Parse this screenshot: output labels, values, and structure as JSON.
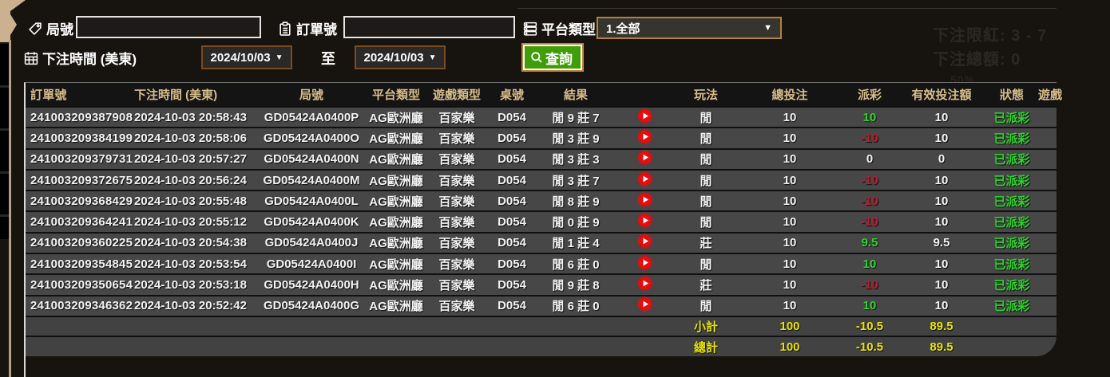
{
  "filters": {
    "round_label": "局號",
    "round_value": "",
    "order_label": "訂單號",
    "order_value": "",
    "platform_label": "平台類型",
    "platform_selected": "1.全部",
    "bet_time_label": "下注時間 (美東)",
    "date_from": "2024/10/03",
    "date_to": "2024/10/03",
    "to_label": "至",
    "query_label": "查詢"
  },
  "faint_overlay": {
    "line1": "下注限紅: 3 - 7",
    "line2": "下注總額: 0",
    "line3": "50%"
  },
  "table": {
    "headers": [
      "訂單號",
      "下注時間 (美東)",
      "局號",
      "平台類型",
      "遊戲類型",
      "桌號",
      "結果",
      "",
      "玩法",
      "總投注",
      "派彩",
      "有效投注額",
      "狀態",
      "遊戲"
    ],
    "rows": [
      {
        "order": "241003209387908",
        "time": "2024-10-03 20:58:43",
        "round": "GD05424A0400P",
        "platform": "AG歐洲廳",
        "game_type": "百家樂",
        "table_no": "D054",
        "result": "閒 9 莊 7",
        "play": "閒",
        "total_bet": "10",
        "payout": "10",
        "payout_class": "win",
        "valid_bet": "10",
        "status": "已派彩"
      },
      {
        "order": "241003209384199",
        "time": "2024-10-03 20:58:06",
        "round": "GD05424A0400O",
        "platform": "AG歐洲廳",
        "game_type": "百家樂",
        "table_no": "D054",
        "result": "閒 3 莊 9",
        "play": "閒",
        "total_bet": "10",
        "payout": "-10",
        "payout_class": "lose",
        "valid_bet": "10",
        "status": "已派彩"
      },
      {
        "order": "241003209379731",
        "time": "2024-10-03 20:57:27",
        "round": "GD05424A0400N",
        "platform": "AG歐洲廳",
        "game_type": "百家樂",
        "table_no": "D054",
        "result": "閒 3 莊 3",
        "play": "閒",
        "total_bet": "10",
        "payout": "0",
        "payout_class": "tie",
        "valid_bet": "0",
        "status": "已派彩"
      },
      {
        "order": "241003209372675",
        "time": "2024-10-03 20:56:24",
        "round": "GD05424A0400M",
        "platform": "AG歐洲廳",
        "game_type": "百家樂",
        "table_no": "D054",
        "result": "閒 3 莊 7",
        "play": "閒",
        "total_bet": "10",
        "payout": "-10",
        "payout_class": "lose",
        "valid_bet": "10",
        "status": "已派彩"
      },
      {
        "order": "241003209368429",
        "time": "2024-10-03 20:55:48",
        "round": "GD05424A0400L",
        "platform": "AG歐洲廳",
        "game_type": "百家樂",
        "table_no": "D054",
        "result": "閒 8 莊 9",
        "play": "閒",
        "total_bet": "10",
        "payout": "-10",
        "payout_class": "lose",
        "valid_bet": "10",
        "status": "已派彩"
      },
      {
        "order": "241003209364241",
        "time": "2024-10-03 20:55:12",
        "round": "GD05424A0400K",
        "platform": "AG歐洲廳",
        "game_type": "百家樂",
        "table_no": "D054",
        "result": "閒 0 莊 9",
        "play": "閒",
        "total_bet": "10",
        "payout": "-10",
        "payout_class": "lose",
        "valid_bet": "10",
        "status": "已派彩"
      },
      {
        "order": "241003209360225",
        "time": "2024-10-03 20:54:38",
        "round": "GD05424A0400J",
        "platform": "AG歐洲廳",
        "game_type": "百家樂",
        "table_no": "D054",
        "result": "閒 1 莊 4",
        "play": "莊",
        "total_bet": "10",
        "payout": "9.5",
        "payout_class": "win",
        "valid_bet": "9.5",
        "status": "已派彩"
      },
      {
        "order": "241003209354845",
        "time": "2024-10-03 20:53:54",
        "round": "GD05424A0400I",
        "platform": "AG歐洲廳",
        "game_type": "百家樂",
        "table_no": "D054",
        "result": "閒 6 莊 0",
        "play": "閒",
        "total_bet": "10",
        "payout": "10",
        "payout_class": "win",
        "valid_bet": "10",
        "status": "已派彩"
      },
      {
        "order": "241003209350654",
        "time": "2024-10-03 20:53:18",
        "round": "GD05424A0400H",
        "platform": "AG歐洲廳",
        "game_type": "百家樂",
        "table_no": "D054",
        "result": "閒 9 莊 8",
        "play": "莊",
        "total_bet": "10",
        "payout": "-10",
        "payout_class": "lose",
        "valid_bet": "10",
        "status": "已派彩"
      },
      {
        "order": "241003209346362",
        "time": "2024-10-03 20:52:42",
        "round": "GD05424A0400G",
        "platform": "AG歐洲廳",
        "game_type": "百家樂",
        "table_no": "D054",
        "result": "閒 6 莊 0",
        "play": "閒",
        "total_bet": "10",
        "payout": "10",
        "payout_class": "win",
        "valid_bet": "10",
        "status": "已派彩"
      }
    ],
    "subtotal": {
      "label": "小計",
      "total_bet": "100",
      "payout": "-10.5",
      "valid_bet": "89.5"
    },
    "total": {
      "label": "總計",
      "total_bet": "100",
      "payout": "-10.5",
      "valid_bet": "89.5"
    }
  },
  "colors": {
    "header_gold": "#d8bd8a",
    "win_green": "#2ed32e",
    "lose_red": "#b51e2e",
    "summary_yellow": "#e9e400",
    "button_green": "#3f9e08",
    "border_orange": "#bd8440",
    "drawer_tan": "#b6a085",
    "row_bg": "#474747"
  }
}
